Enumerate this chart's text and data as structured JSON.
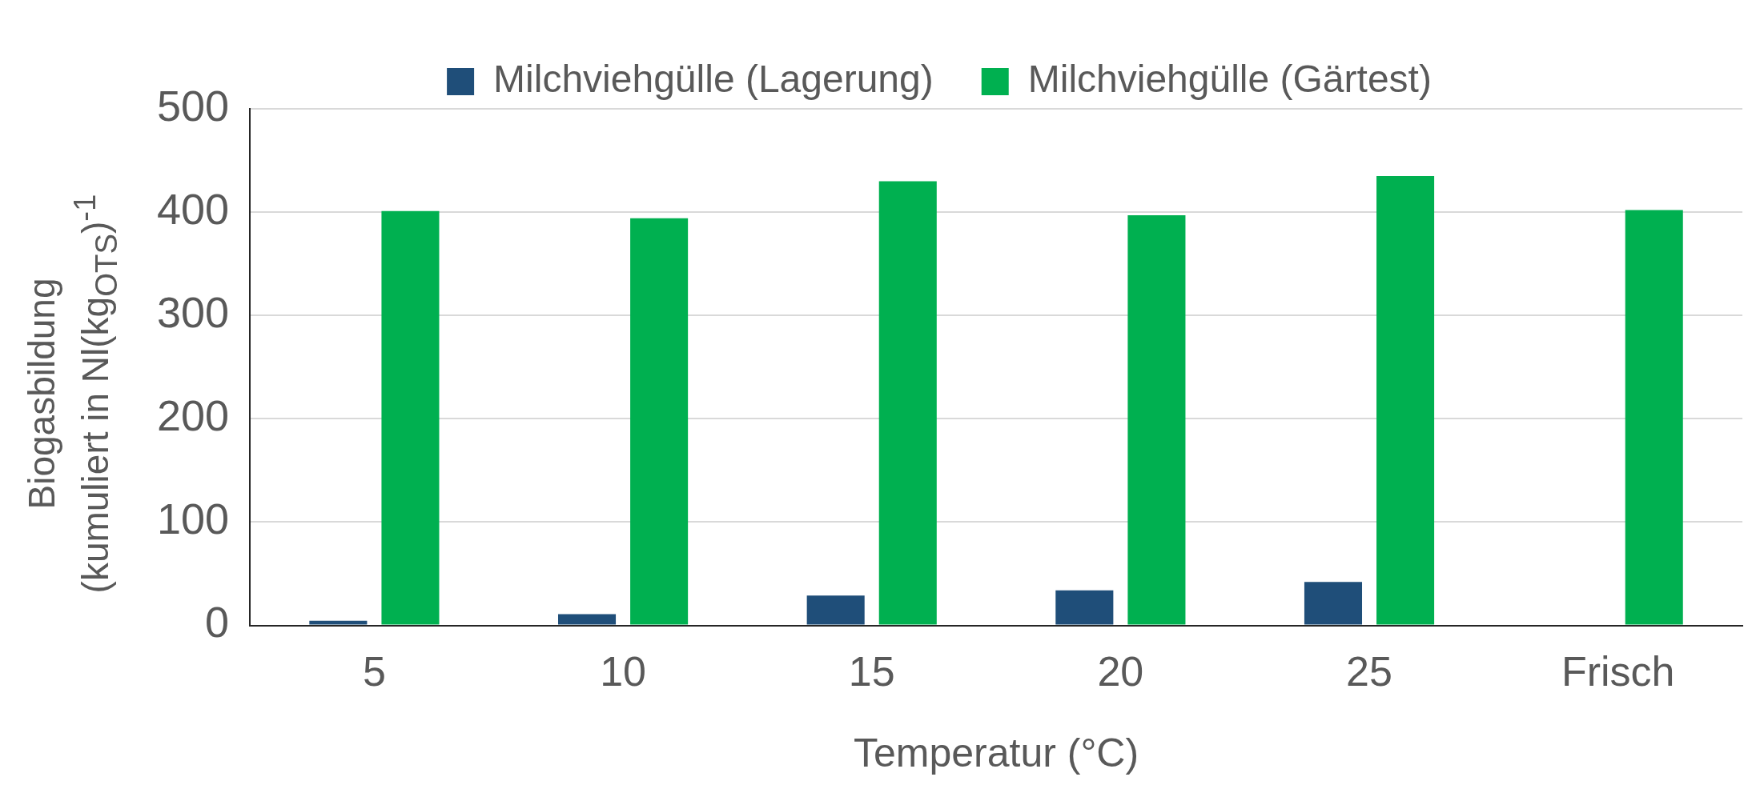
{
  "chart_data": {
    "type": "bar",
    "categories": [
      "5",
      "10",
      "15",
      "20",
      "25",
      "Frisch"
    ],
    "series": [
      {
        "name": "Milchviehgülle (Lagerung)",
        "color": "#1f4e79",
        "values": [
          4.5,
          11,
          29,
          34,
          42,
          null
        ]
      },
      {
        "name": "Milchviehgülle (Gärtest)",
        "color": "#00b050",
        "values": [
          401,
          394,
          430,
          397,
          435,
          402
        ]
      }
    ],
    "xlabel": "Temperatur (°C)",
    "ylabel": "Biogasbildung\n(kumuliert in Nl(kg$_{OTS}$)$^{-1}$",
    "ylim": [
      0,
      500
    ],
    "yticks": [
      0,
      100,
      200,
      300,
      400,
      500
    ],
    "grid": "y",
    "legend": "top"
  }
}
